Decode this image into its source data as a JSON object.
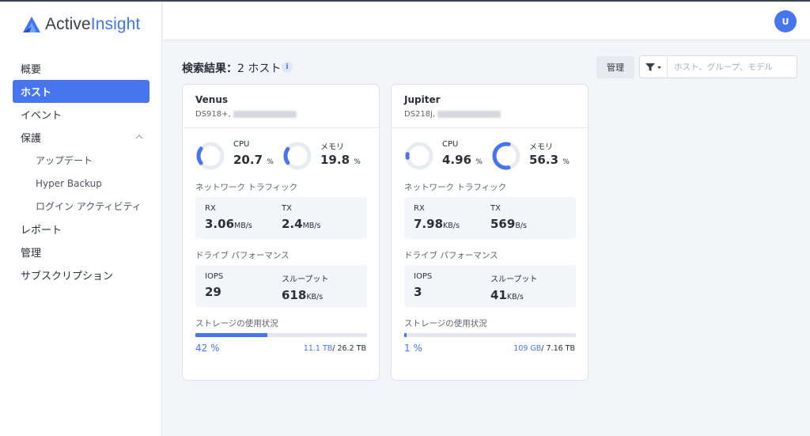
{
  "app": {
    "logo_text_1": "Active",
    "logo_text_2": "Insight",
    "accent_color": "#4775ef"
  },
  "sidebar": {
    "items": [
      {
        "label": "概要"
      },
      {
        "label": "ホスト"
      },
      {
        "label": "イベント"
      },
      {
        "label": "保護"
      },
      {
        "label": "アップデート"
      },
      {
        "label": "Hyper Backup"
      },
      {
        "label": "ログイン アクティビティ"
      },
      {
        "label": "レポート"
      },
      {
        "label": "管理"
      },
      {
        "label": "サブスクリプション"
      }
    ]
  },
  "topbar": {
    "avatar_initial": "U"
  },
  "results": {
    "title": "検索結果：",
    "count": "2 ホスト",
    "info_icon": "i"
  },
  "toolbar": {
    "manage_label": "管理",
    "filter_icon": "filter-icon",
    "search_placeholder": "ホスト、グループ、モデル"
  },
  "labels": {
    "cpu": "CPU",
    "memory": "メモリ",
    "network": "ネットワーク トラフィック",
    "rx": "RX",
    "tx": "TX",
    "drive": "ドライブ パフォーマンス",
    "iops": "IOPS",
    "throughput": "スループット",
    "storage": "ストレージの使用状況"
  },
  "hosts": [
    {
      "name": "Venus",
      "model": "DS918+,",
      "cpu": "20.7",
      "cpu_unit": "%",
      "cpu_fraction": 0.207,
      "mem": "19.8",
      "mem_unit": "%",
      "mem_fraction": 0.198,
      "rx": "3.06",
      "rx_unit": "MB/s",
      "tx": "2.4",
      "tx_unit": "MB/s",
      "iops": "29",
      "throughput": "618",
      "throughput_unit": "KB/s",
      "storage_pct": "42 %",
      "storage_fraction": 0.42,
      "storage_used": "11.1 TB",
      "storage_total": "/ 26.2 TB"
    },
    {
      "name": "Jupiter",
      "model": "DS218j,",
      "cpu": "4.96",
      "cpu_unit": "%",
      "cpu_fraction": 0.0496,
      "mem": "56.3",
      "mem_unit": "%",
      "mem_fraction": 0.563,
      "rx": "7.98",
      "rx_unit": "KB/s",
      "tx": "569",
      "tx_unit": "B/s",
      "iops": "3",
      "throughput": "41",
      "throughput_unit": "KB/s",
      "storage_pct": "1 %",
      "storage_fraction": 0.01,
      "storage_used": "109 GB",
      "storage_total": "/ 7.16 TB"
    }
  ]
}
